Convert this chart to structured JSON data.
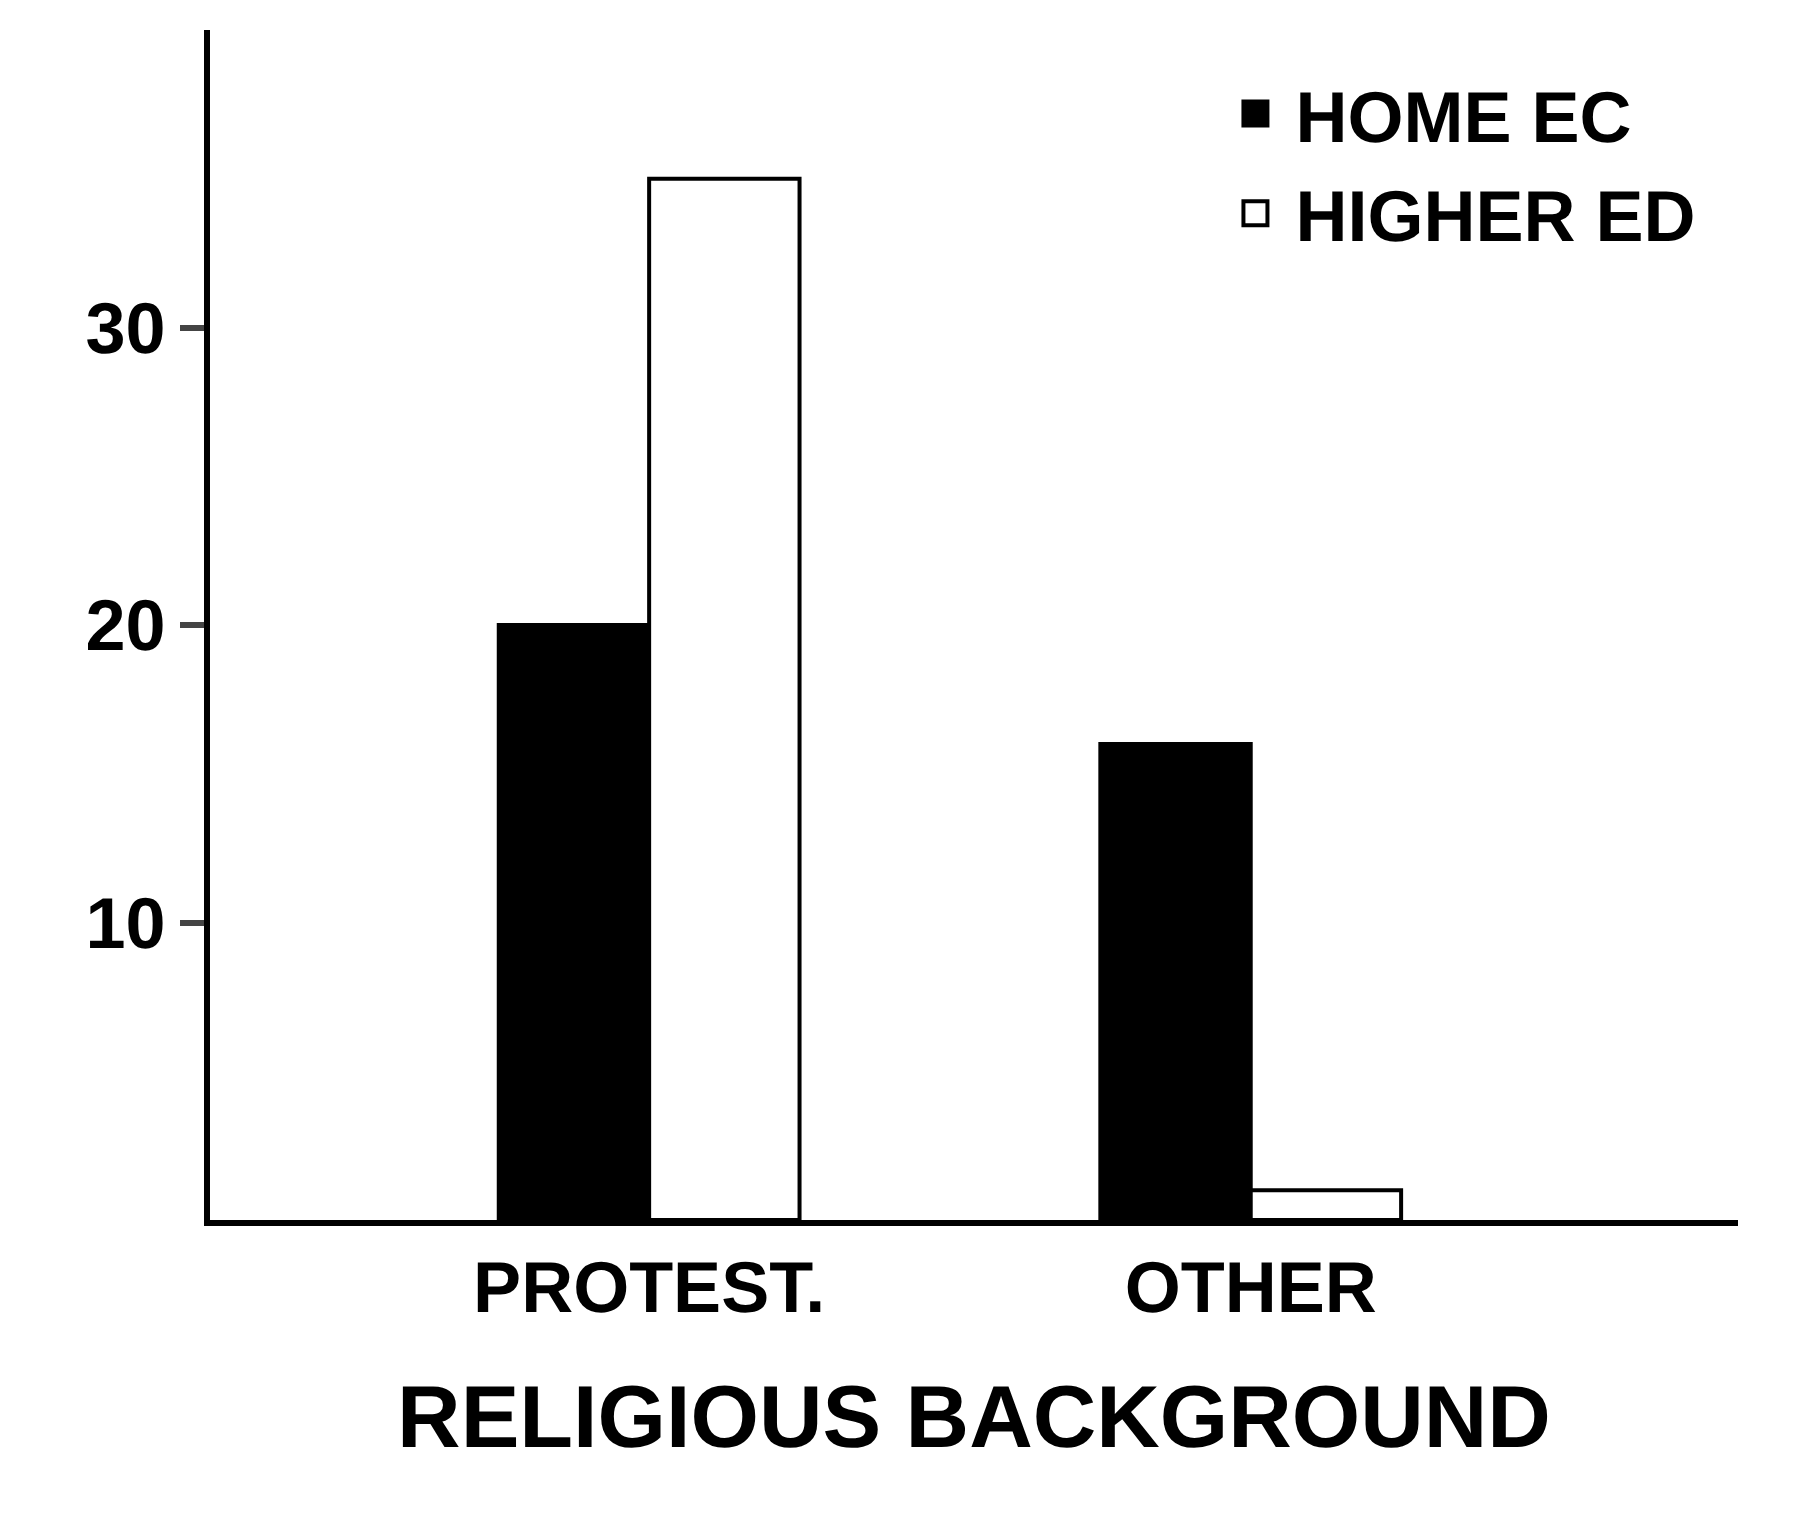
{
  "chart_data": {
    "type": "bar",
    "xlabel": "RELIGIOUS BACKGROUND",
    "categories": [
      "PROTEST.",
      "OTHER"
    ],
    "series": [
      {
        "name": "HOME EC",
        "color": "#000000",
        "values": [
          20,
          16
        ]
      },
      {
        "name": "HIGHER ED",
        "color": "#ffffff",
        "values": [
          35,
          1
        ]
      }
    ],
    "ylim": [
      0,
      40
    ],
    "yticks": [
      10,
      20,
      30
    ],
    "legend": "top right"
  }
}
